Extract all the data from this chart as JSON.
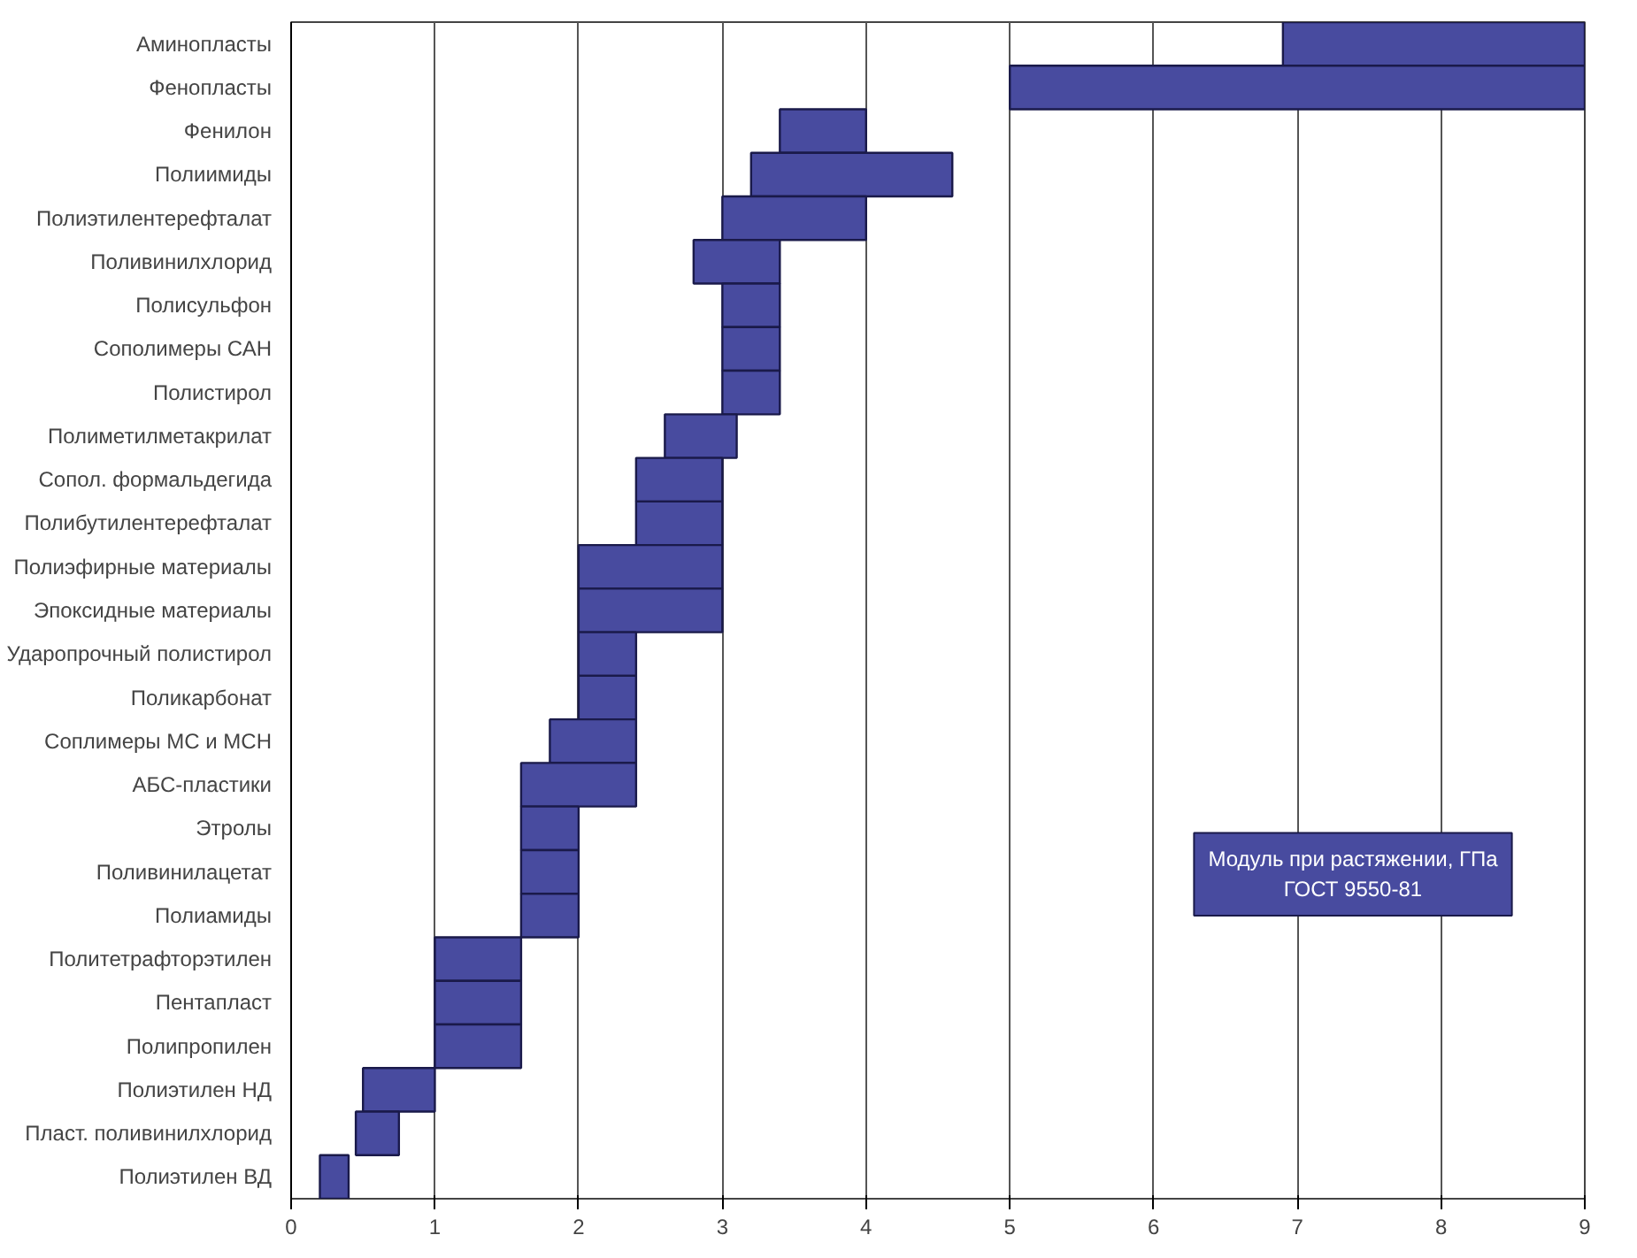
{
  "chart_data": {
    "type": "bar",
    "orientation": "horizontal",
    "categories": [
      "Аминопласты",
      "Фенопласты",
      "Фенилон",
      "Полиимиды",
      "Полиэтилентерефталат",
      "Поливинилхлорид",
      "Полисульфон",
      "Сополимеры САН",
      "Полистирол",
      "Полиметилметакрилат",
      "Сопол. формальдегида",
      "Полибутилентерефталат",
      "Полиэфирные материалы",
      "Эпоксидные материалы",
      "Ударопрочный полистирол",
      "Поликарбонат",
      "Соплимеры МС и МСН",
      "АБС-пластики",
      "Этролы",
      "Поливинилацетат",
      "Полиамиды",
      "Политетрафторэтилен",
      "Пентапласт",
      "Полипропилен",
      "Полиэтилен НД",
      "Пласт. поливинилхлорид",
      "Полиэтилен ВД"
    ],
    "base": [
      6.9,
      5,
      3.4,
      3.2,
      3,
      2.8,
      3,
      3,
      3,
      2.6,
      2.4,
      2.4,
      2,
      2,
      2,
      2,
      1.8,
      1.6,
      1.6,
      1.6,
      1.6,
      1,
      1,
      1,
      0.5,
      0.45,
      0.2
    ],
    "values": [
      2.1,
      4,
      0.6,
      1.4,
      1,
      0.6,
      0.4,
      0.4,
      0.4,
      0.5,
      0.6,
      0.6,
      1,
      1,
      0.4,
      0.4,
      0.6,
      0.8,
      0.4,
      0.4,
      0.4,
      0.6,
      0.6,
      0.6,
      0.5,
      0.3,
      0.2
    ],
    "color": "#484b9f",
    "xlim": [
      0,
      9
    ],
    "xticks": [
      0,
      1,
      2,
      3,
      4,
      5,
      6,
      7,
      8,
      9
    ],
    "grid": "x",
    "annotations": [
      "Модуль при растяжении, ГПа\nГОСТ 9550-81"
    ]
  }
}
